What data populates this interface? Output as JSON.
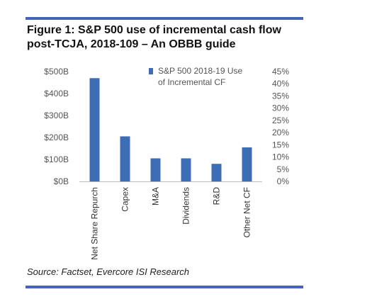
{
  "figure": {
    "title": "Figure 1: S&P 500 use of incremental cash flow post-TCJA, 2018-109 – An OBBB guide",
    "source": "Source: Factset, Evercore ISI Research"
  },
  "chart_data": {
    "type": "bar",
    "categories": [
      "Net Share Repurch",
      "Capex",
      "M&A",
      "Dividends",
      "R&D",
      "Other Net CF"
    ],
    "series": [
      {
        "name": "S&P 500 2018-19 Use of Incremental CF",
        "values": [
          470,
          205,
          105,
          105,
          80,
          155
        ]
      }
    ],
    "legend_lines": [
      "S&P 500 2018-19 Use",
      "of Incremental CF"
    ],
    "legend_position": "top-right",
    "y_left": {
      "ticks": [
        "$500B",
        "$400B",
        "$300B",
        "$200B",
        "$100B",
        "$0B"
      ],
      "ylim": [
        0,
        500
      ]
    },
    "y_right": {
      "ticks": [
        "45%",
        "40%",
        "35%",
        "30%",
        "25%",
        "20%",
        "15%",
        "10%",
        "5%",
        "0%"
      ],
      "ylim": [
        0,
        45
      ]
    },
    "grid": false,
    "bar_color": "#3d6db5"
  }
}
